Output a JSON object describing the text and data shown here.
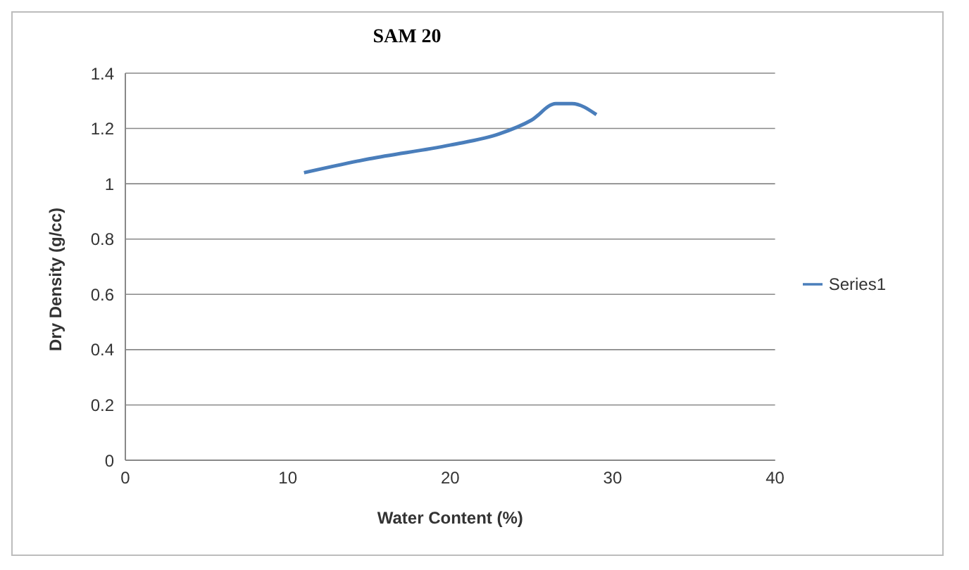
{
  "chart_data": {
    "type": "line",
    "title": "SAM 20",
    "xlabel": "Water Content (%)",
    "ylabel": "Dry Density (g/cc)",
    "x": [
      11,
      15,
      20,
      23,
      25,
      26.5,
      27.5,
      29
    ],
    "series": [
      {
        "name": "Series1",
        "color": "#4a7ebb",
        "values": [
          1.04,
          1.09,
          1.14,
          1.18,
          1.23,
          1.29,
          1.29,
          1.25
        ]
      }
    ],
    "xlim": [
      0,
      40
    ],
    "xticks": [
      0,
      10,
      20,
      30,
      40
    ],
    "ylim": [
      0,
      1.4
    ],
    "yticks": [
      0,
      0.2,
      0.4,
      0.6,
      0.8,
      1,
      1.2,
      1.4
    ],
    "grid": "y",
    "legend": "right",
    "marker": "none",
    "line_style": "solid"
  }
}
